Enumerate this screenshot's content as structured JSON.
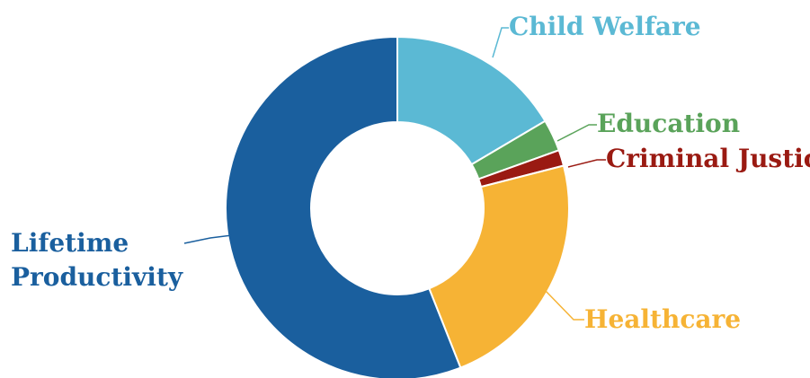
{
  "chart_data": {
    "type": "pie",
    "variant": "donut",
    "title": "",
    "slices": [
      {
        "label": "Child Welfare",
        "value": 16.5,
        "color": "#5bb9d4"
      },
      {
        "label": "Education",
        "value": 3.0,
        "color": "#5aa35a"
      },
      {
        "label": "Criminal Justice",
        "value": 1.5,
        "color": "#9a1a12"
      },
      {
        "label": "Healthcare",
        "value": 23.0,
        "color": "#f6b335"
      },
      {
        "label": "Lifetime Productivity",
        "value": 56.0,
        "color": "#1a5f9e"
      }
    ],
    "start_angle": "12 o'clock",
    "direction": "clockwise",
    "legend": "none (labels with leader lines)"
  }
}
